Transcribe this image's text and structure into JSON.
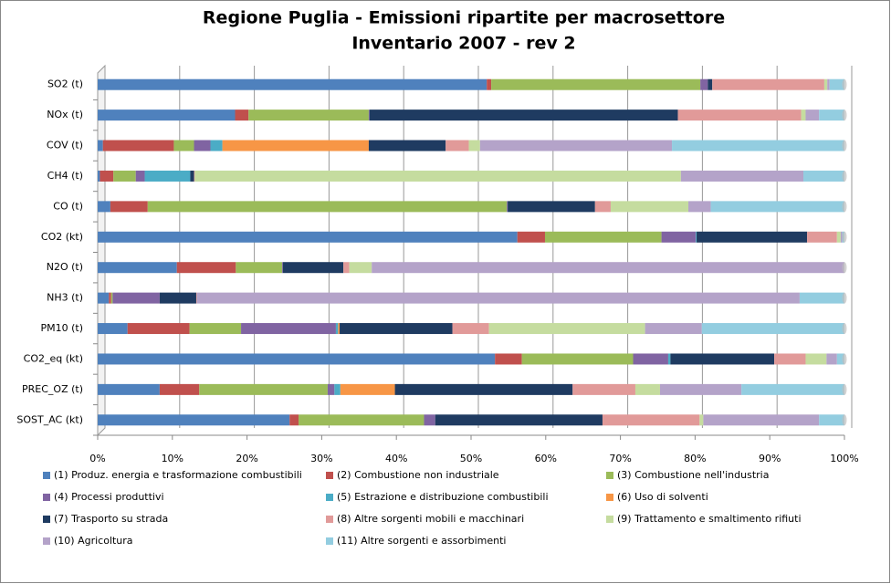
{
  "chart_data": {
    "type": "stacked_bar_horizontal_100",
    "title": "Regione Puglia -  Emissioni ripartite per macrosettore",
    "subtitle": "Inventario 2007  - rev 2",
    "categories": [
      "SO2 (t)",
      "NOx (t)",
      "COV (t)",
      "CH4 (t)",
      "CO (t)",
      "CO2 (kt)",
      "N2O (t)",
      "NH3 (t)",
      "PM10 (t)",
      "CO2_eq (kt)",
      "PREC_OZ (t)",
      "SOST_AC (kt)"
    ],
    "series": [
      {
        "name": "(1) Produz. energia e trasformazione  combustibili",
        "color": "#4f81bd",
        "values": [
          52.1,
          18.4,
          0.7,
          0.3,
          1.7,
          56.2,
          10.6,
          1.5,
          4,
          53.2,
          8.3,
          25.7
        ]
      },
      {
        "name": "(2) Combustione non industriale",
        "color": "#c0504d",
        "values": [
          0.6,
          1.8,
          9.5,
          1.8,
          5,
          3.7,
          7.9,
          0.3,
          8.3,
          3.6,
          5.3,
          1.2
        ]
      },
      {
        "name": "(3) Combustione nell'industria",
        "color": "#9bbb59",
        "values": [
          28,
          16.1,
          2.7,
          3,
          48.1,
          15.6,
          6.2,
          0.2,
          6.9,
          14.9,
          17.2,
          16.8
        ]
      },
      {
        "name": "(4) Processi produttivi",
        "color": "#8064a2",
        "values": [
          1,
          0.1,
          2.2,
          1.2,
          0.1,
          4.6,
          0.1,
          6.3,
          12.7,
          4.7,
          0.9,
          1.5
        ]
      },
      {
        "name": "(5) Estrazione e distribuzione combustibili",
        "color": "#4bacc6",
        "values": [
          0,
          0,
          1.6,
          6.1,
          0,
          0.1,
          0,
          0,
          0.3,
          0.3,
          0.8,
          0
        ]
      },
      {
        "name": "(6) Uso di solventi",
        "color": "#f79646",
        "values": [
          0,
          0,
          19.6,
          0,
          0,
          0,
          0,
          0,
          0.2,
          0,
          7.3,
          0
        ]
      },
      {
        "name": "(7) Trasporto su strada",
        "color": "#1f3b61",
        "values": [
          0.6,
          41.3,
          10.3,
          0.5,
          11.7,
          14.8,
          8.1,
          4.9,
          15.1,
          13.9,
          23.8,
          22.4
        ]
      },
      {
        "name": "(8) Altre sorgenti mobili e macchinari",
        "color": "#e19a99",
        "values": [
          15,
          16.5,
          3.1,
          0.1,
          2.1,
          4,
          0.8,
          0.1,
          4.9,
          4.2,
          8.4,
          13
        ]
      },
      {
        "name": "(9) Trattamento  e smaltimento  rifiuti",
        "color": "#c5dc9f",
        "values": [
          0.4,
          0.6,
          1.5,
          65.1,
          10.4,
          0.5,
          3,
          0,
          20.9,
          2.8,
          3.3,
          0.5
        ]
      },
      {
        "name": "(10) Agricoltura",
        "color": "#b4a3c9",
        "values": [
          0.3,
          1.8,
          25.7,
          16.4,
          3,
          0.2,
          63.3,
          80.7,
          7.6,
          1.4,
          10.9,
          15.5
        ]
      },
      {
        "name": "(11) Altre sorgenti e assorbimenti",
        "color": "#93cde0",
        "values": [
          2,
          3.4,
          23.1,
          5.5,
          17.9,
          0.3,
          0,
          6,
          19.1,
          1,
          13.8,
          3.4
        ]
      }
    ],
    "xlim": [
      0,
      100
    ],
    "xticks": [
      {
        "value": 0,
        "label": "0%"
      },
      {
        "value": 10,
        "label": "10%"
      },
      {
        "value": 20,
        "label": "20%"
      },
      {
        "value": 30,
        "label": "30%"
      },
      {
        "value": 40,
        "label": "40%"
      },
      {
        "value": 50,
        "label": "50%"
      },
      {
        "value": 60,
        "label": "60%"
      },
      {
        "value": 70,
        "label": "70%"
      },
      {
        "value": 80,
        "label": "80%"
      },
      {
        "value": 90,
        "label": "90%"
      },
      {
        "value": 100,
        "label": "100%"
      }
    ],
    "grid": true,
    "legend": "bottom"
  }
}
